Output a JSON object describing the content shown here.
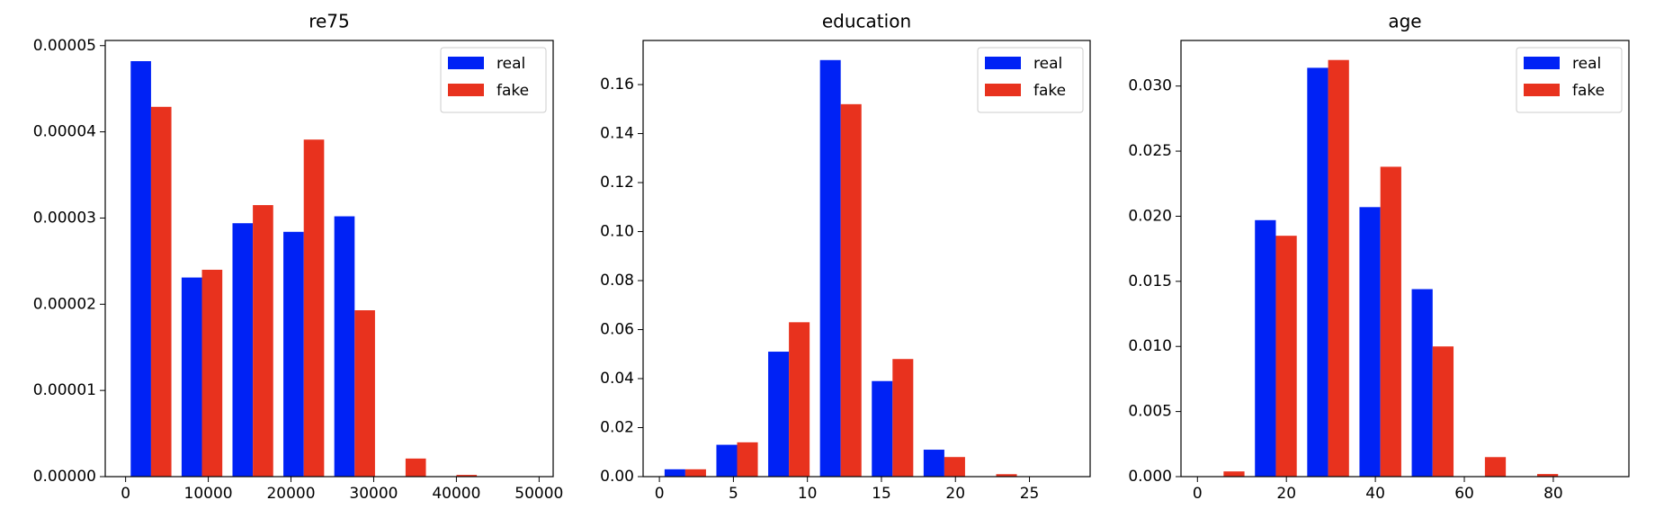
{
  "chart_data": [
    {
      "type": "histogram",
      "title": "re75",
      "bins": [
        0,
        6155,
        12310,
        18465,
        24620,
        30775,
        36930,
        43085,
        49240
      ],
      "series": [
        {
          "name": "real",
          "color": "#0022f5",
          "values": [
            4.82e-05,
            2.31e-05,
            2.94e-05,
            2.84e-05,
            3.02e-05,
            0,
            0,
            0
          ]
        },
        {
          "name": "fake",
          "color": "#e8321e",
          "values": [
            4.29e-05,
            2.4e-05,
            3.15e-05,
            3.91e-05,
            1.93e-05,
            2.1e-06,
            2e-07,
            0
          ]
        }
      ],
      "xlim": [
        -2462,
        51702
      ],
      "ylim": [
        0,
        5.06e-05
      ],
      "xticks": [
        0,
        10000,
        20000,
        30000,
        40000,
        50000
      ],
      "yticks": [
        {
          "value": 0,
          "label": "0.00000"
        },
        {
          "value": 1e-05,
          "label": "0.00001"
        },
        {
          "value": 2e-05,
          "label": "0.00002"
        },
        {
          "value": 3e-05,
          "label": "0.00003"
        },
        {
          "value": 4e-05,
          "label": "0.00004"
        },
        {
          "value": 5e-05,
          "label": "0.00005"
        }
      ],
      "legend": "upper right"
    },
    {
      "type": "histogram",
      "title": "education",
      "bins": [
        0,
        3.5,
        7,
        10.5,
        14,
        17.5,
        21,
        24.5,
        28
      ],
      "series": [
        {
          "name": "real",
          "color": "#0022f5",
          "values": [
            0.003,
            0.013,
            0.051,
            0.17,
            0.039,
            0.011,
            0,
            0
          ]
        },
        {
          "name": "fake",
          "color": "#e8321e",
          "values": [
            0.003,
            0.014,
            0.063,
            0.152,
            0.048,
            0.008,
            0.001,
            0
          ]
        }
      ],
      "xlim": [
        -1.1,
        29.1
      ],
      "ylim": [
        0,
        0.178
      ],
      "xticks": [
        0,
        5,
        10,
        15,
        20,
        25
      ],
      "yticks": [
        {
          "value": 0,
          "label": "0.00"
        },
        {
          "value": 0.02,
          "label": "0.02"
        },
        {
          "value": 0.04,
          "label": "0.04"
        },
        {
          "value": 0.06,
          "label": "0.06"
        },
        {
          "value": 0.08,
          "label": "0.08"
        },
        {
          "value": 0.1,
          "label": "0.10"
        },
        {
          "value": 0.12,
          "label": "0.12"
        },
        {
          "value": 0.14,
          "label": "0.14"
        },
        {
          "value": 0.16,
          "label": "0.16"
        }
      ],
      "legend": "upper right"
    },
    {
      "type": "histogram",
      "title": "age",
      "bins": [
        0,
        11.75,
        23.5,
        35.25,
        47,
        58.75,
        70.5,
        82.25,
        94
      ],
      "series": [
        {
          "name": "real",
          "color": "#0022f5",
          "values": [
            0,
            0.0197,
            0.0314,
            0.0207,
            0.0144,
            0,
            0,
            0
          ]
        },
        {
          "name": "fake",
          "color": "#e8321e",
          "values": [
            0.0004,
            0.0185,
            0.032,
            0.0238,
            0.01,
            0.0015,
            0.0002,
            0
          ]
        }
      ],
      "xlim": [
        -3.7,
        97
      ],
      "ylim": [
        0,
        0.0335
      ],
      "xticks": [
        0,
        20,
        40,
        60,
        80
      ],
      "yticks": [
        {
          "value": 0,
          "label": "0.000"
        },
        {
          "value": 0.005,
          "label": "0.005"
        },
        {
          "value": 0.01,
          "label": "0.010"
        },
        {
          "value": 0.015,
          "label": "0.015"
        },
        {
          "value": 0.02,
          "label": "0.020"
        },
        {
          "value": 0.025,
          "label": "0.025"
        },
        {
          "value": 0.03,
          "label": "0.030"
        }
      ],
      "legend": "upper right"
    }
  ]
}
